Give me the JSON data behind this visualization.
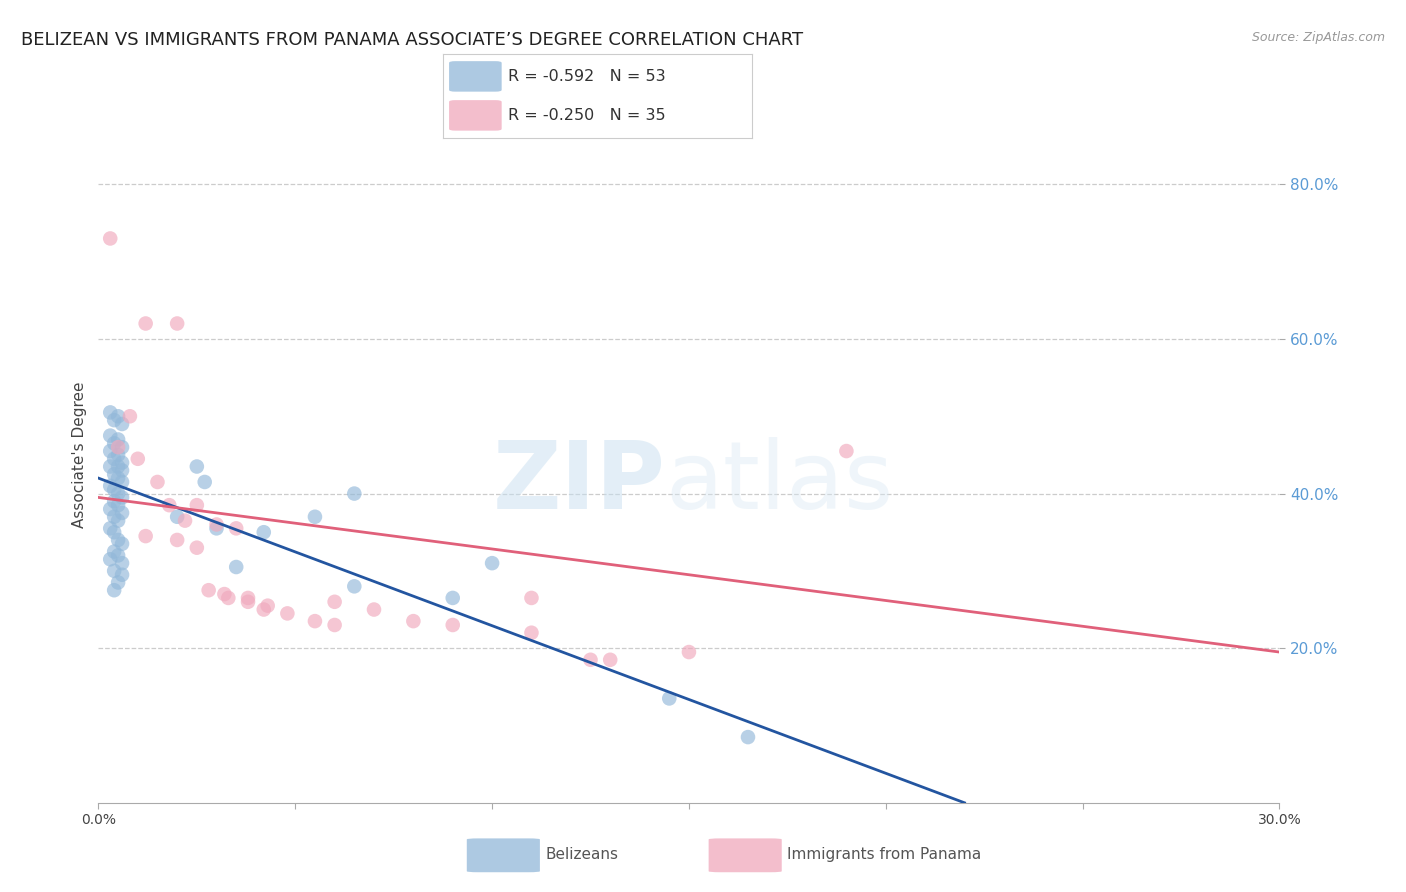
{
  "title": "BELIZEAN VS IMMIGRANTS FROM PANAMA ASSOCIATE’S DEGREE CORRELATION CHART",
  "source": "Source: ZipAtlas.com",
  "ylabel": "Associate's Degree",
  "right_ytick_labels": [
    "80.0%",
    "60.0%",
    "40.0%",
    "20.0%"
  ],
  "right_ytick_values": [
    0.8,
    0.6,
    0.4,
    0.2
  ],
  "xlim": [
    0.0,
    0.3
  ],
  "ylim": [
    0.0,
    0.9
  ],
  "xtick_values": [
    0.0,
    0.05,
    0.1,
    0.15,
    0.2,
    0.25,
    0.3
  ],
  "xtick_labels": [
    "0.0%",
    "",
    "",
    "",
    "",
    "",
    "30.0%"
  ],
  "gridline_values": [
    0.2,
    0.4,
    0.6,
    0.8
  ],
  "blue_R": "-0.592",
  "blue_N": "53",
  "pink_R": "-0.250",
  "pink_N": "35",
  "legend_label_blue": "Belizeans",
  "legend_label_pink": "Immigrants from Panama",
  "blue_color": "#92b8d9",
  "pink_color": "#f0a8bc",
  "blue_line_color": "#2355a0",
  "pink_line_color": "#e0607a",
  "blue_dots": [
    [
      0.003,
      0.505
    ],
    [
      0.004,
      0.495
    ],
    [
      0.005,
      0.5
    ],
    [
      0.006,
      0.49
    ],
    [
      0.003,
      0.475
    ],
    [
      0.005,
      0.47
    ],
    [
      0.004,
      0.465
    ],
    [
      0.006,
      0.46
    ],
    [
      0.003,
      0.455
    ],
    [
      0.005,
      0.45
    ],
    [
      0.004,
      0.445
    ],
    [
      0.006,
      0.44
    ],
    [
      0.003,
      0.435
    ],
    [
      0.005,
      0.435
    ],
    [
      0.006,
      0.43
    ],
    [
      0.004,
      0.425
    ],
    [
      0.005,
      0.42
    ],
    [
      0.006,
      0.415
    ],
    [
      0.003,
      0.41
    ],
    [
      0.004,
      0.405
    ],
    [
      0.005,
      0.4
    ],
    [
      0.006,
      0.395
    ],
    [
      0.004,
      0.39
    ],
    [
      0.005,
      0.385
    ],
    [
      0.003,
      0.38
    ],
    [
      0.006,
      0.375
    ],
    [
      0.004,
      0.37
    ],
    [
      0.005,
      0.365
    ],
    [
      0.003,
      0.355
    ],
    [
      0.004,
      0.35
    ],
    [
      0.005,
      0.34
    ],
    [
      0.006,
      0.335
    ],
    [
      0.004,
      0.325
    ],
    [
      0.005,
      0.32
    ],
    [
      0.003,
      0.315
    ],
    [
      0.006,
      0.31
    ],
    [
      0.004,
      0.3
    ],
    [
      0.006,
      0.295
    ],
    [
      0.005,
      0.285
    ],
    [
      0.004,
      0.275
    ],
    [
      0.025,
      0.435
    ],
    [
      0.027,
      0.415
    ],
    [
      0.065,
      0.4
    ],
    [
      0.1,
      0.31
    ],
    [
      0.065,
      0.28
    ],
    [
      0.035,
      0.305
    ],
    [
      0.09,
      0.265
    ],
    [
      0.145,
      0.135
    ],
    [
      0.165,
      0.085
    ],
    [
      0.042,
      0.35
    ],
    [
      0.055,
      0.37
    ],
    [
      0.03,
      0.355
    ],
    [
      0.02,
      0.37
    ]
  ],
  "pink_dots": [
    [
      0.003,
      0.73
    ],
    [
      0.012,
      0.62
    ],
    [
      0.02,
      0.62
    ],
    [
      0.008,
      0.5
    ],
    [
      0.005,
      0.46
    ],
    [
      0.01,
      0.445
    ],
    [
      0.015,
      0.415
    ],
    [
      0.018,
      0.385
    ],
    [
      0.025,
      0.385
    ],
    [
      0.022,
      0.365
    ],
    [
      0.03,
      0.36
    ],
    [
      0.035,
      0.355
    ],
    [
      0.012,
      0.345
    ],
    [
      0.02,
      0.34
    ],
    [
      0.025,
      0.33
    ],
    [
      0.032,
      0.27
    ],
    [
      0.038,
      0.26
    ],
    [
      0.042,
      0.25
    ],
    [
      0.048,
      0.245
    ],
    [
      0.055,
      0.235
    ],
    [
      0.06,
      0.23
    ],
    [
      0.038,
      0.265
    ],
    [
      0.043,
      0.255
    ],
    [
      0.028,
      0.275
    ],
    [
      0.033,
      0.265
    ],
    [
      0.11,
      0.265
    ],
    [
      0.13,
      0.185
    ],
    [
      0.125,
      0.185
    ],
    [
      0.19,
      0.455
    ],
    [
      0.15,
      0.195
    ],
    [
      0.07,
      0.25
    ],
    [
      0.08,
      0.235
    ],
    [
      0.09,
      0.23
    ],
    [
      0.11,
      0.22
    ],
    [
      0.06,
      0.26
    ]
  ],
  "blue_line_x": [
    0.0,
    0.22
  ],
  "blue_line_y": [
    0.42,
    0.0
  ],
  "pink_line_x": [
    0.0,
    0.3
  ],
  "pink_line_y": [
    0.395,
    0.195
  ],
  "watermark_zip": "ZIP",
  "watermark_atlas": "atlas",
  "background_color": "#ffffff",
  "title_fontsize": 13,
  "axis_label_fontsize": 11,
  "tick_fontsize": 10
}
